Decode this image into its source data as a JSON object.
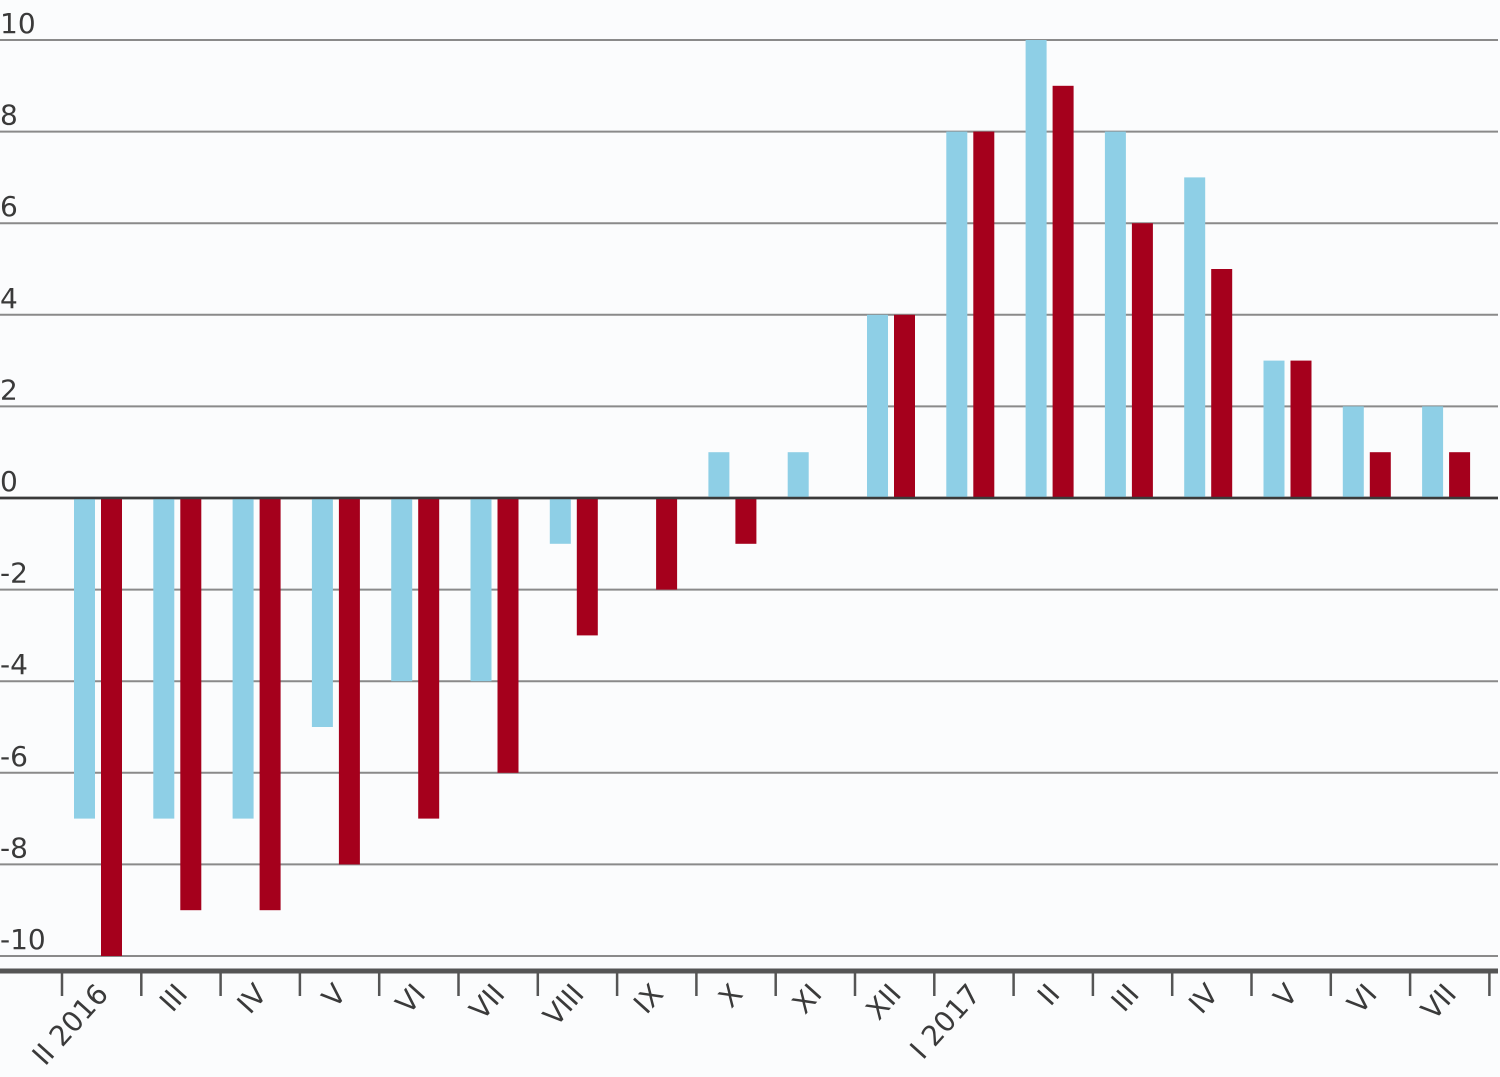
{
  "chart_data": {
    "type": "bar",
    "title": "",
    "xlabel": "",
    "ylabel": "",
    "ylim": [
      -10,
      10
    ],
    "yticks": [
      10,
      8,
      6,
      4,
      2,
      0,
      -2,
      -4,
      -6,
      -8,
      -10
    ],
    "ytick_labels": [
      "10",
      "8",
      "6",
      "4",
      "2",
      "0",
      "-2",
      "-4",
      "-6",
      "-8",
      "-10"
    ],
    "grid": true,
    "legend": "none",
    "categories": [
      "II 2016",
      "III",
      "IV",
      "V",
      "VI",
      "VII",
      "VIII",
      "IX",
      "X",
      "XI",
      "XII",
      "I 2017",
      "II",
      "III",
      "IV",
      "V",
      "VI",
      "VII"
    ],
    "series": [
      {
        "color": "#8ecfe6",
        "values": [
          -7,
          -7,
          -7,
          -5,
          -4,
          -4,
          -1,
          0,
          1,
          1,
          4,
          8,
          10,
          8,
          7,
          3,
          2,
          2
        ]
      },
      {
        "color": "#a5001c",
        "values": [
          -10,
          -9,
          -9,
          -8,
          -7,
          -6,
          -3,
          -2,
          -1,
          0,
          4,
          8,
          9,
          6,
          5,
          3,
          1,
          1
        ]
      }
    ]
  }
}
